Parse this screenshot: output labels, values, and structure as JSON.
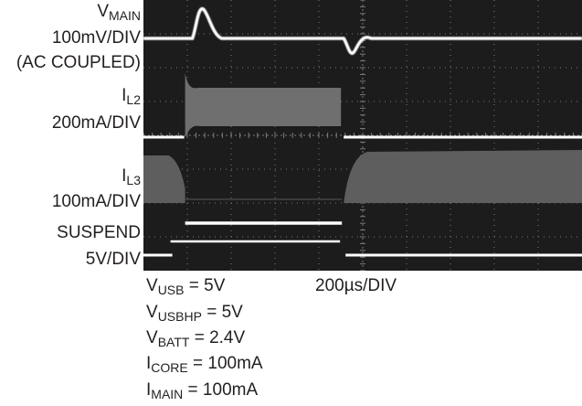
{
  "chart_data": {
    "type": "oscilloscope",
    "time_scale": "200µs/DIV",
    "channels": [
      {
        "name_main": "V",
        "name_sub": "MAIN",
        "scale": "100mV/DIV",
        "note": "(AC COUPLED)"
      },
      {
        "name_main": "I",
        "name_sub": "L2",
        "scale": "200mA/DIV"
      },
      {
        "name_main": "I",
        "name_sub": "L3",
        "scale": "100mA/DIV"
      },
      {
        "name_main": "SUSPEND",
        "name_sub": "",
        "scale": "5V/DIV"
      }
    ],
    "suspend_window_us": [
      190,
      905
    ],
    "conditions": [
      {
        "main": "V",
        "sub": "USB",
        "value": " = 5V"
      },
      {
        "main": "V",
        "sub": "USBHP",
        "value": " = 5V"
      },
      {
        "main": "V",
        "sub": "BATT",
        "value": " = 2.4V"
      },
      {
        "main": "I",
        "sub": "CORE",
        "value": " = 100mA"
      },
      {
        "main": "I",
        "sub": "MAIN",
        "value": " = 100mA"
      }
    ],
    "colors": {
      "screen": "#1c1c1c",
      "grid": "#7a7a7a",
      "trace": "#ffffff",
      "text": "#231f20"
    }
  }
}
